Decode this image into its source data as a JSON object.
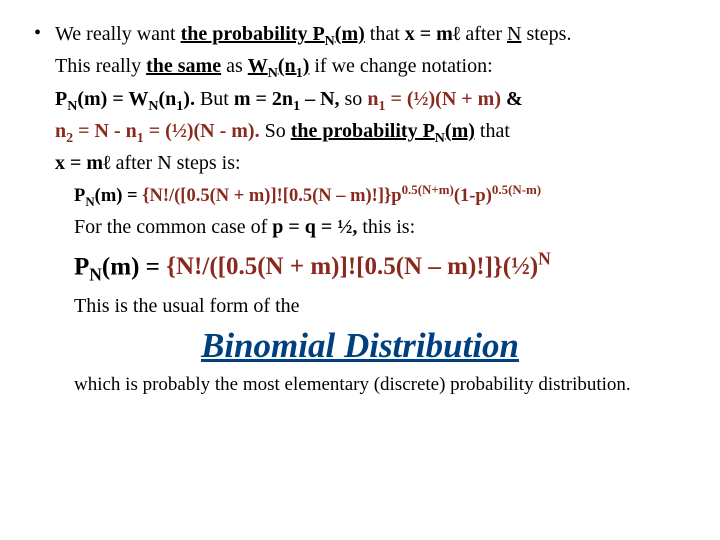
{
  "colors": {
    "text": "#000000",
    "emphasis_red": "#8a2a1f",
    "heading_blue": "#004080",
    "background": "#ffffff"
  },
  "typography": {
    "body_fontsize": 20,
    "formula1_fontsize": 18.5,
    "big_formula_fontsize": 25,
    "heading_fontsize": 35,
    "font_family": "Times New Roman"
  },
  "bullet": "•",
  "line1_a": "We really want ",
  "line1_b": "the probability P",
  "line1_b_sub": "N",
  "line1_c": "(m)",
  "line1_d": " that ",
  "line1_e": "x = mℓ",
  "line1_f": " after ",
  "line1_g": "N",
  "line1_h": " steps.",
  "line2_a": "This really ",
  "line2_b": "the same",
  "line2_c": " as ",
  "line2_d": "W",
  "line2_d_sub": "N",
  "line2_e": "(n",
  "line2_e_sub": "1",
  "line2_f": ")",
  "line2_g": " if we change notation:",
  "line3_a": "P",
  "line3_a_sub": "N",
  "line3_b": "(m) = W",
  "line3_b_sub": "N",
  "line3_c": "(n",
  "line3_c_sub": "1",
  "line3_d": ").",
  "line3_e": " But ",
  "line3_f": "m = 2n",
  "line3_f_sub": "1",
  "line3_g": " – N,",
  "line3_h": " so ",
  "line3_i": "n",
  "line3_i_sub": "1",
  "line3_j": " = (½)(N + m)",
  "line3_k": " &",
  "line4_a": "n",
  "line4_a_sub": "2",
  "line4_b": " = N -  n",
  "line4_b_sub": "1",
  "line4_c": " = (½)(N - m).",
  "line4_d": " So ",
  "line4_e": "the probability",
  "line4_f": " P",
  "line4_f_sub": "N",
  "line4_g": "(m)",
  "line4_h": " that",
  "line5_a": "x = mℓ",
  "line5_b": " after N steps is:",
  "formula1_a": "P",
  "formula1_a_sub": "N",
  "formula1_b": "(m) =",
  "formula1_c": " {N!/([0.5(N + m)]![0.5(N – m)!]}p",
  "formula1_c_sup": "0.5(N+m)",
  "formula1_d": "(1-p)",
  "formula1_d_sup": "0.5(N-m)",
  "line6": "For the common case of  ",
  "line6_b": "p = q = ½,",
  "line6_c": " this is:",
  "big_a": "P",
  "big_a_sub": "N",
  "big_b": "(m) = ",
  "big_c": "{N!/([0.5(N + m)]![0.5(N – m)!]}(½)",
  "big_c_sup": "N",
  "usual": "This is the usual form of the",
  "heading": "Binomial Distribution",
  "closing": "which is probably the most elementary (discrete) probability distribution."
}
